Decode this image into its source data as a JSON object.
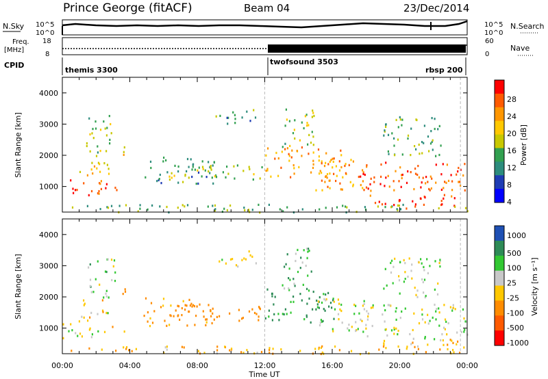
{
  "header": {
    "station": "Prince George (fitACF)",
    "beam": "Beam 04",
    "date": "23/Dec/2014"
  },
  "noise_panel": {
    "left_label": "N.Sky",
    "right_label": "N.Search",
    "left_ticks": [
      "10^5",
      "10^0"
    ],
    "right_ticks": [
      "10^5",
      "10^0"
    ]
  },
  "freq_panel": {
    "left_label_1": "Freq.",
    "left_label_2": "[MHz]",
    "left_ticks": [
      "18",
      "8"
    ],
    "right_label": "Nave",
    "right_ticks": [
      "60",
      "0"
    ]
  },
  "cpid_panel": {
    "label": "CPID",
    "segments": [
      "themis 3300",
      "twofsound 3503",
      "rbsp 200"
    ]
  },
  "power_panel": {
    "ylabel": "Slant Range [km]",
    "cbar_label": "Power [dB]",
    "cbar_ticks": [
      "28",
      "24",
      "20",
      "16",
      "12",
      "8",
      "4"
    ],
    "colors": [
      "#ff0000",
      "#ff5a00",
      "#ff9600",
      "#ffc800",
      "#c8c800",
      "#32a050",
      "#2d8c7d",
      "#1e3cb4",
      "#0000ff"
    ]
  },
  "velocity_panel": {
    "ylabel": "Slant Range [km]",
    "cbar_label": "Velocity [m s⁻¹]",
    "cbar_ticks": [
      "1000",
      "500",
      "100",
      "25",
      "-25",
      "-100",
      "-500",
      "-1000"
    ],
    "colors": [
      "#1e50b4",
      "#2e8b57",
      "#32c832",
      "#c8c8c8",
      "#ffc800",
      "#ff8c00",
      "#ff5a00",
      "#ff0000"
    ]
  },
  "xaxis": {
    "label": "Time UT",
    "ticks": [
      "00:00",
      "04:00",
      "08:00",
      "12:00",
      "16:00",
      "20:00",
      "00:00"
    ]
  },
  "chart_data": {
    "type": "heatmap",
    "title": "Prince George (fitACF)  Beam 04  23/Dec/2014",
    "xlabel": "Time UT",
    "ylabel": "Slant Range [km]",
    "xlim": [
      0,
      24
    ],
    "ylim": [
      180,
      4500
    ],
    "yticks": [
      1000,
      2000,
      3000,
      4000
    ],
    "cpid_segments": [
      {
        "name": "themis 3300",
        "start_h": 0,
        "end_h": 12
      },
      {
        "name": "twofsound 3503",
        "start_h": 12,
        "end_h": 23.6
      },
      {
        "name": "rbsp 200",
        "start_h": 23.6,
        "end_h": 24
      }
    ],
    "freq_step_h": 12,
    "freq_mhz_before": 10.5,
    "freq_mhz_after": 16,
    "power_scale": {
      "label": "Power [dB]",
      "min": 0,
      "max": 30,
      "ticks": [
        4,
        8,
        12,
        16,
        20,
        24,
        28
      ]
    },
    "velocity_scale": {
      "label": "Velocity [m s⁻¹]",
      "ticks": [
        -1000,
        -500,
        -100,
        -25,
        25,
        100,
        500,
        1000
      ]
    },
    "scatter_regions": [
      {
        "t0": 0.0,
        "t1": 2.6,
        "r0": 700,
        "r1": 1300,
        "power": 26,
        "velocity": -10
      },
      {
        "t0": 1.0,
        "t1": 2.8,
        "r0": 1300,
        "r1": 2000,
        "power": 18,
        "velocity": -30
      },
      {
        "t0": 1.4,
        "t1": 3.1,
        "r0": 2000,
        "r1": 3300,
        "power": 12,
        "velocity": 40
      },
      {
        "t0": 2.9,
        "t1": 3.8,
        "r0": 900,
        "r1": 1100,
        "power": 20,
        "velocity": -100
      },
      {
        "t0": 3.5,
        "t1": 3.9,
        "r0": 1700,
        "r1": 2300,
        "power": 16,
        "velocity": -200
      },
      {
        "t0": 4.7,
        "t1": 9.0,
        "r0": 1100,
        "r1": 2000,
        "power": 8,
        "velocity": -150
      },
      {
        "t0": 6.3,
        "t1": 8.8,
        "r0": 1300,
        "r1": 1800,
        "power": 12,
        "velocity": -250
      },
      {
        "t0": 8.8,
        "t1": 12.0,
        "r0": 1250,
        "r1": 1750,
        "power": 14,
        "velocity": -200
      },
      {
        "t0": 9.0,
        "t1": 11.5,
        "r0": 3000,
        "r1": 3500,
        "power": 8,
        "velocity": -30
      },
      {
        "t0": 12.0,
        "t1": 16.5,
        "r0": 1200,
        "r1": 2300,
        "power": 22,
        "velocity": 150
      },
      {
        "t0": 13.0,
        "t1": 15.0,
        "r0": 2300,
        "r1": 3600,
        "power": 12,
        "velocity": 60
      },
      {
        "t0": 15.0,
        "t1": 18.0,
        "r0": 900,
        "r1": 2000,
        "power": 22,
        "velocity": -10
      },
      {
        "t0": 17.5,
        "t1": 24.0,
        "r0": 700,
        "r1": 1800,
        "power": 26,
        "velocity": -5
      },
      {
        "t0": 18.5,
        "t1": 23.5,
        "r0": 300,
        "r1": 700,
        "power": 30,
        "velocity": -50
      },
      {
        "t0": 19.0,
        "t1": 22.5,
        "r0": 2000,
        "r1": 3300,
        "power": 10,
        "velocity": 20
      },
      {
        "t0": 0.0,
        "t1": 24.0,
        "r0": 200,
        "r1": 450,
        "power": 10,
        "velocity": -100
      }
    ]
  }
}
